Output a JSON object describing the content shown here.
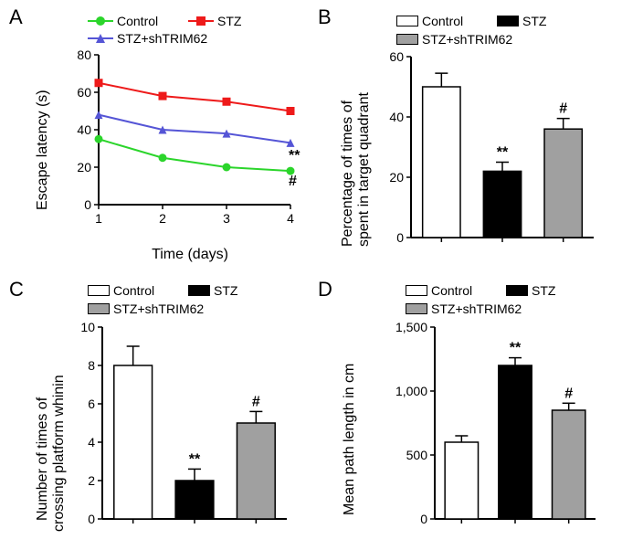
{
  "panelA": {
    "label": "A",
    "type": "line",
    "ylabel": "Escape latency (s)",
    "xlabel": "Time (days)",
    "label_fontsize": 16,
    "tick_fontsize": 14,
    "ylim": [
      0,
      80
    ],
    "ytick_step": 20,
    "xticks": [
      1,
      2,
      3,
      4
    ],
    "series": [
      {
        "name": "Control",
        "color": "#2bd52b",
        "marker": "circle",
        "y": [
          35,
          25,
          20,
          18
        ]
      },
      {
        "name": "STZ",
        "color": "#ee1a1a",
        "marker": "square",
        "y": [
          65,
          58,
          55,
          50
        ]
      },
      {
        "name": "STZ+shTRIM62",
        "color": "#5555d6",
        "marker": "triangle",
        "y": [
          48,
          40,
          38,
          33
        ]
      }
    ],
    "sig": [
      {
        "text": "**",
        "attach": "STZ"
      },
      {
        "text": "#",
        "attach": "STZ+shTRIM62"
      }
    ],
    "legend_items": [
      {
        "name": "Control",
        "color": "#2bd52b",
        "marker": "circle"
      },
      {
        "name": "STZ",
        "color": "#ee1a1a",
        "marker": "square"
      },
      {
        "name": "STZ+shTRIM62",
        "color": "#5555d6",
        "marker": "triangle"
      }
    ],
    "line_width": 2,
    "marker_size": 9,
    "axis_color": "#000000",
    "background_color": "#ffffff"
  },
  "panelB": {
    "label": "B",
    "type": "bar",
    "ylabel": "Percentage of times of spent in target quadrant",
    "ylim": [
      0,
      60
    ],
    "ytick_step": 20,
    "bars": [
      {
        "name": "Control",
        "value": 50,
        "err": 4.5,
        "fill": "#ffffff",
        "sig": ""
      },
      {
        "name": "STZ",
        "value": 22,
        "err": 3,
        "fill": "#000000",
        "sig": "**"
      },
      {
        "name": "STZ+shTRIM62",
        "value": 36,
        "err": 3.5,
        "fill": "#a0a0a0",
        "sig": "#"
      }
    ],
    "bar_border": "#000000",
    "bar_width": 0.62,
    "legend_items": [
      {
        "name": "Control",
        "fill": "#ffffff"
      },
      {
        "name": "STZ",
        "fill": "#000000"
      },
      {
        "name": "STZ+shTRIM62",
        "fill": "#a0a0a0"
      }
    ],
    "axis_color": "#000000"
  },
  "panelC": {
    "label": "C",
    "type": "bar",
    "ylabel": "Number of times of crossing platform whinin",
    "ylim": [
      0,
      10
    ],
    "yticks": [
      0,
      2,
      4,
      6,
      8,
      10
    ],
    "bars": [
      {
        "name": "Control",
        "value": 8.0,
        "err": 1.0,
        "fill": "#ffffff",
        "sig": ""
      },
      {
        "name": "STZ",
        "value": 2.0,
        "err": 0.6,
        "fill": "#000000",
        "sig": "**"
      },
      {
        "name": "STZ+shTRIM62",
        "value": 5.0,
        "err": 0.6,
        "fill": "#a0a0a0",
        "sig": "#"
      }
    ],
    "bar_border": "#000000",
    "bar_width": 0.62,
    "legend_items": [
      {
        "name": "Control",
        "fill": "#ffffff"
      },
      {
        "name": "STZ",
        "fill": "#000000"
      },
      {
        "name": "STZ+shTRIM62",
        "fill": "#a0a0a0"
      }
    ],
    "axis_color": "#000000"
  },
  "panelD": {
    "label": "D",
    "type": "bar",
    "ylabel": "Mean path length in cm",
    "ylim": [
      0,
      1500
    ],
    "yticks": [
      0,
      500,
      1000,
      1500
    ],
    "ytick_labels": [
      "0",
      "500",
      "1,000",
      "1,500"
    ],
    "bars": [
      {
        "name": "Control",
        "value": 600,
        "err": 50,
        "fill": "#ffffff",
        "sig": ""
      },
      {
        "name": "STZ",
        "value": 1200,
        "err": 60,
        "fill": "#000000",
        "sig": "**"
      },
      {
        "name": "STZ+shTRIM62",
        "value": 850,
        "err": 55,
        "fill": "#a0a0a0",
        "sig": "#"
      }
    ],
    "bar_border": "#000000",
    "bar_width": 0.62,
    "legend_items": [
      {
        "name": "Control",
        "fill": "#ffffff"
      },
      {
        "name": "STZ",
        "fill": "#000000"
      },
      {
        "name": "STZ+shTRIM62",
        "fill": "#a0a0a0"
      }
    ],
    "axis_color": "#000000"
  }
}
